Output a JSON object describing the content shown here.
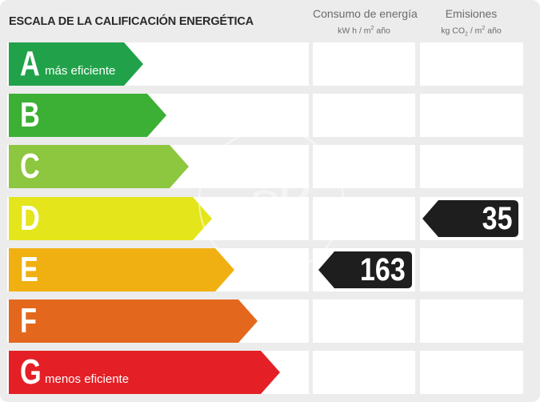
{
  "header": {
    "title": "ESCALA DE LA CALIFICACIÓN ENERGÉTICA",
    "energy": {
      "label": "Consumo de energía",
      "unit_a": "kW h / m",
      "unit_sup": "2",
      "unit_b": " año"
    },
    "emissions": {
      "label": "Emisiones",
      "unit_a": "kg CO",
      "unit_sub": "2",
      "unit_b": " / m",
      "unit_sup": "2",
      "unit_c": " año"
    }
  },
  "rows": [
    {
      "letter": "A",
      "sublabel": "más eficiente",
      "color": "#21a24a"
    },
    {
      "letter": "B",
      "sublabel": "",
      "color": "#3cb034"
    },
    {
      "letter": "C",
      "sublabel": "",
      "color": "#8dc63f"
    },
    {
      "letter": "D",
      "sublabel": "",
      "color": "#e4e51b"
    },
    {
      "letter": "E",
      "sublabel": "",
      "color": "#f0b011"
    },
    {
      "letter": "F",
      "sublabel": "",
      "color": "#e3681e"
    },
    {
      "letter": "G",
      "sublabel": "menos eficiente",
      "color": "#e41f26"
    }
  ],
  "ratings": {
    "energy": {
      "value": "163",
      "class": "E"
    },
    "emissions": {
      "value": "35",
      "class": "D"
    }
  },
  "badge_color": "#1e1e1e"
}
